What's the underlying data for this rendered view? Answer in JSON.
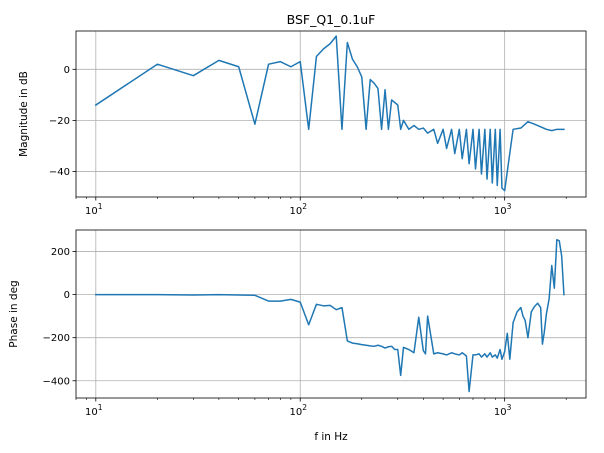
{
  "chart_data": [
    {
      "type": "line",
      "title": "BSF_Q1_0.1uF",
      "xlabel": "",
      "ylabel": "Magnitude in dB",
      "xscale": "log",
      "xlim": [
        8,
        2500
      ],
      "ylim": [
        -50,
        15
      ],
      "grid": true,
      "color": "#1f77b4",
      "x_ticks": [
        {
          "value": 10,
          "base": "10",
          "exp": "1"
        },
        {
          "value": 100,
          "base": "10",
          "exp": "2"
        },
        {
          "value": 1000,
          "base": "10",
          "exp": "3"
        }
      ],
      "y_ticks": [
        {
          "value": 0,
          "label": "0"
        },
        {
          "value": -20,
          "label": "−20"
        },
        {
          "value": -40,
          "label": "−40"
        }
      ],
      "series": [
        {
          "x": [
            10,
            20,
            30,
            40,
            50,
            60,
            70,
            80,
            90,
            100,
            110,
            120,
            130,
            140,
            150,
            160,
            170,
            180,
            190,
            200,
            210,
            220,
            230,
            240,
            250,
            260,
            270,
            280,
            290,
            300,
            310,
            320,
            340,
            360,
            380,
            400,
            420,
            450,
            470,
            500,
            520,
            550,
            570,
            600,
            620,
            650,
            670,
            700,
            720,
            750,
            770,
            800,
            820,
            850,
            870,
            900,
            920,
            950,
            970,
            1000,
            1100,
            1200,
            1300,
            1400,
            1500,
            1600,
            1700,
            1800,
            1900,
            1950
          ],
          "y": [
            -14,
            2,
            -2.5,
            3.5,
            1,
            -21.5,
            2,
            3,
            1,
            3,
            -23.5,
            5,
            8,
            10,
            13,
            -23.5,
            10.5,
            4,
            1,
            -3,
            -23.5,
            -4,
            -5.5,
            -7.5,
            -23.5,
            -8,
            -23.5,
            -12,
            -13,
            -14,
            -23.5,
            -20,
            -23.5,
            -22,
            -23.5,
            -23,
            -25,
            -23.5,
            -29,
            -23.5,
            -31,
            -23.5,
            -33,
            -23.5,
            -35,
            -23.5,
            -37,
            -23.5,
            -39,
            -23.5,
            -41,
            -23.5,
            -43,
            -23.5,
            -44.5,
            -23.5,
            -45.5,
            -23.5,
            -46.5,
            -47.5,
            -23.5,
            -23,
            -20.5,
            -21.5,
            -22.5,
            -23.5,
            -24,
            -23.5,
            -23.5,
            -23.5
          ]
        }
      ]
    },
    {
      "type": "line",
      "title": "",
      "xlabel": "f in Hz",
      "ylabel": "Phase in deg",
      "xscale": "log",
      "xlim": [
        8,
        2500
      ],
      "ylim": [
        -480,
        300
      ],
      "grid": true,
      "color": "#1f77b4",
      "x_ticks": [
        {
          "value": 10,
          "base": "10",
          "exp": "1"
        },
        {
          "value": 100,
          "base": "10",
          "exp": "2"
        },
        {
          "value": 1000,
          "base": "10",
          "exp": "3"
        }
      ],
      "y_ticks": [
        {
          "value": 200,
          "label": "200"
        },
        {
          "value": 0,
          "label": "0"
        },
        {
          "value": -200,
          "label": "−200"
        },
        {
          "value": -400,
          "label": "−400"
        }
      ],
      "series": [
        {
          "x": [
            10,
            20,
            30,
            40,
            50,
            60,
            70,
            80,
            90,
            100,
            110,
            120,
            130,
            140,
            150,
            160,
            170,
            180,
            190,
            200,
            210,
            220,
            230,
            240,
            250,
            260,
            270,
            280,
            290,
            300,
            310,
            320,
            340,
            360,
            380,
            400,
            410,
            420,
            450,
            470,
            500,
            520,
            550,
            570,
            600,
            620,
            650,
            670,
            700,
            720,
            750,
            770,
            800,
            820,
            850,
            870,
            900,
            920,
            950,
            970,
            1000,
            1030,
            1060,
            1100,
            1150,
            1200,
            1230,
            1260,
            1300,
            1350,
            1400,
            1450,
            1500,
            1530,
            1560,
            1600,
            1650,
            1700,
            1750,
            1800,
            1850,
            1900,
            1950
          ],
          "y": [
            0,
            0,
            -2,
            0,
            -2,
            -3,
            -30,
            -30,
            -22,
            -35,
            -140,
            -45,
            -52,
            -50,
            -70,
            -60,
            -215,
            -225,
            -228,
            -232,
            -235,
            -238,
            -240,
            -235,
            -240,
            -248,
            -242,
            -240,
            -255,
            -255,
            -375,
            -245,
            -255,
            -270,
            -105,
            -260,
            -275,
            -100,
            -275,
            -270,
            -275,
            -280,
            -270,
            -275,
            -280,
            -270,
            -285,
            -450,
            -280,
            -280,
            -275,
            -290,
            -275,
            -290,
            -270,
            -290,
            -280,
            -295,
            -255,
            -300,
            -265,
            -180,
            -300,
            -130,
            -80,
            -60,
            -100,
            -120,
            -200,
            -80,
            -55,
            -40,
            -60,
            -230,
            -180,
            -90,
            -20,
            135,
            30,
            255,
            250,
            180,
            0
          ]
        }
      ]
    }
  ]
}
